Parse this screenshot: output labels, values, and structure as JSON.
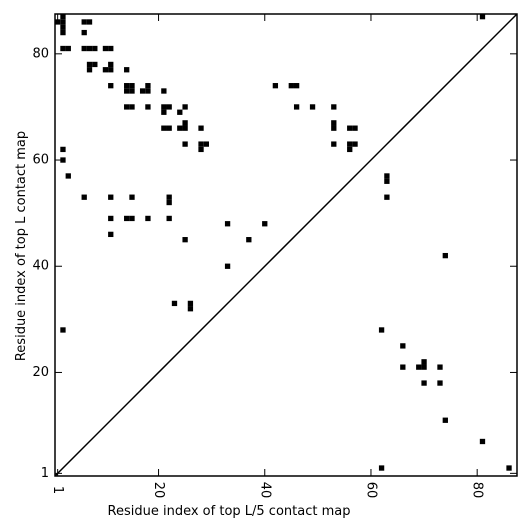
{
  "chart_data": {
    "type": "scatter",
    "marker": "square",
    "xlabel": "Residue index of top L/5 contact map",
    "ylabel": "Residue index of top L contact map",
    "xlim": [
      0.5,
      87.5
    ],
    "ylim": [
      0.5,
      87.5
    ],
    "xticks": [
      1,
      20,
      40,
      60,
      80
    ],
    "xtick_labels": [
      "1",
      "20",
      "40",
      "60",
      "80"
    ],
    "yticks": [
      1,
      20,
      40,
      60,
      80
    ],
    "ytick_labels": [
      "1",
      "20",
      "40",
      "60",
      "80"
    ],
    "diagonal": true,
    "grid": false,
    "points_upper": [
      [
        1,
        86
      ],
      [
        2,
        86
      ],
      [
        2,
        87
      ],
      [
        2,
        85
      ],
      [
        2,
        84
      ],
      [
        6,
        86
      ],
      [
        7,
        86
      ],
      [
        6,
        84
      ],
      [
        2,
        81
      ],
      [
        3,
        81
      ],
      [
        6,
        81
      ],
      [
        7,
        81
      ],
      [
        8,
        81
      ],
      [
        10,
        81
      ],
      [
        11,
        81
      ],
      [
        7,
        78
      ],
      [
        8,
        78
      ],
      [
        11,
        78
      ],
      [
        7,
        77
      ],
      [
        10,
        77
      ],
      [
        11,
        77
      ],
      [
        14,
        77
      ],
      [
        11,
        74
      ],
      [
        14,
        74
      ],
      [
        15,
        74
      ],
      [
        14,
        73
      ],
      [
        15,
        73
      ],
      [
        17,
        73
      ],
      [
        18,
        73
      ],
      [
        18,
        74
      ],
      [
        21,
        73
      ],
      [
        14,
        70
      ],
      [
        15,
        70
      ],
      [
        18,
        70
      ],
      [
        21,
        70
      ],
      [
        22,
        70
      ],
      [
        25,
        70
      ],
      [
        21,
        69
      ],
      [
        24,
        69
      ],
      [
        21,
        66
      ],
      [
        22,
        66
      ],
      [
        24,
        66
      ],
      [
        25,
        66
      ],
      [
        25,
        67
      ],
      [
        28,
        66
      ],
      [
        25,
        63
      ],
      [
        28,
        63
      ],
      [
        29,
        63
      ],
      [
        28,
        62
      ],
      [
        2,
        62
      ],
      [
        2,
        60
      ],
      [
        3,
        57
      ],
      [
        6,
        53
      ],
      [
        11,
        53
      ],
      [
        15,
        53
      ],
      [
        22,
        53
      ],
      [
        22,
        52
      ],
      [
        11,
        49
      ],
      [
        14,
        49
      ],
      [
        15,
        49
      ],
      [
        18,
        49
      ],
      [
        22,
        49
      ],
      [
        11,
        46
      ],
      [
        25,
        45
      ],
      [
        33,
        48
      ],
      [
        37,
        45
      ],
      [
        40,
        48
      ],
      [
        33,
        40
      ],
      [
        23,
        33
      ],
      [
        26,
        33
      ],
      [
        26,
        32
      ],
      [
        2,
        28
      ],
      [
        42,
        74
      ],
      [
        45,
        74
      ],
      [
        46,
        74
      ],
      [
        49,
        70
      ],
      [
        46,
        70
      ],
      [
        53,
        70
      ],
      [
        53,
        67
      ],
      [
        53,
        66
      ],
      [
        56,
        66
      ],
      [
        57,
        66
      ],
      [
        53,
        63
      ],
      [
        56,
        63
      ],
      [
        57,
        63
      ],
      [
        56,
        62
      ],
      [
        63,
        57
      ],
      [
        63,
        56
      ],
      [
        63,
        53
      ],
      [
        81,
        87
      ]
    ],
    "points_lower": [
      [
        74,
        42
      ],
      [
        62,
        28
      ],
      [
        66,
        25
      ],
      [
        70,
        22
      ],
      [
        69,
        21
      ],
      [
        70,
        21
      ],
      [
        73,
        21
      ],
      [
        66,
        21
      ],
      [
        70,
        18
      ],
      [
        73,
        18
      ],
      [
        74,
        11
      ],
      [
        81,
        7
      ],
      [
        62,
        2
      ],
      [
        86,
        2
      ]
    ]
  }
}
